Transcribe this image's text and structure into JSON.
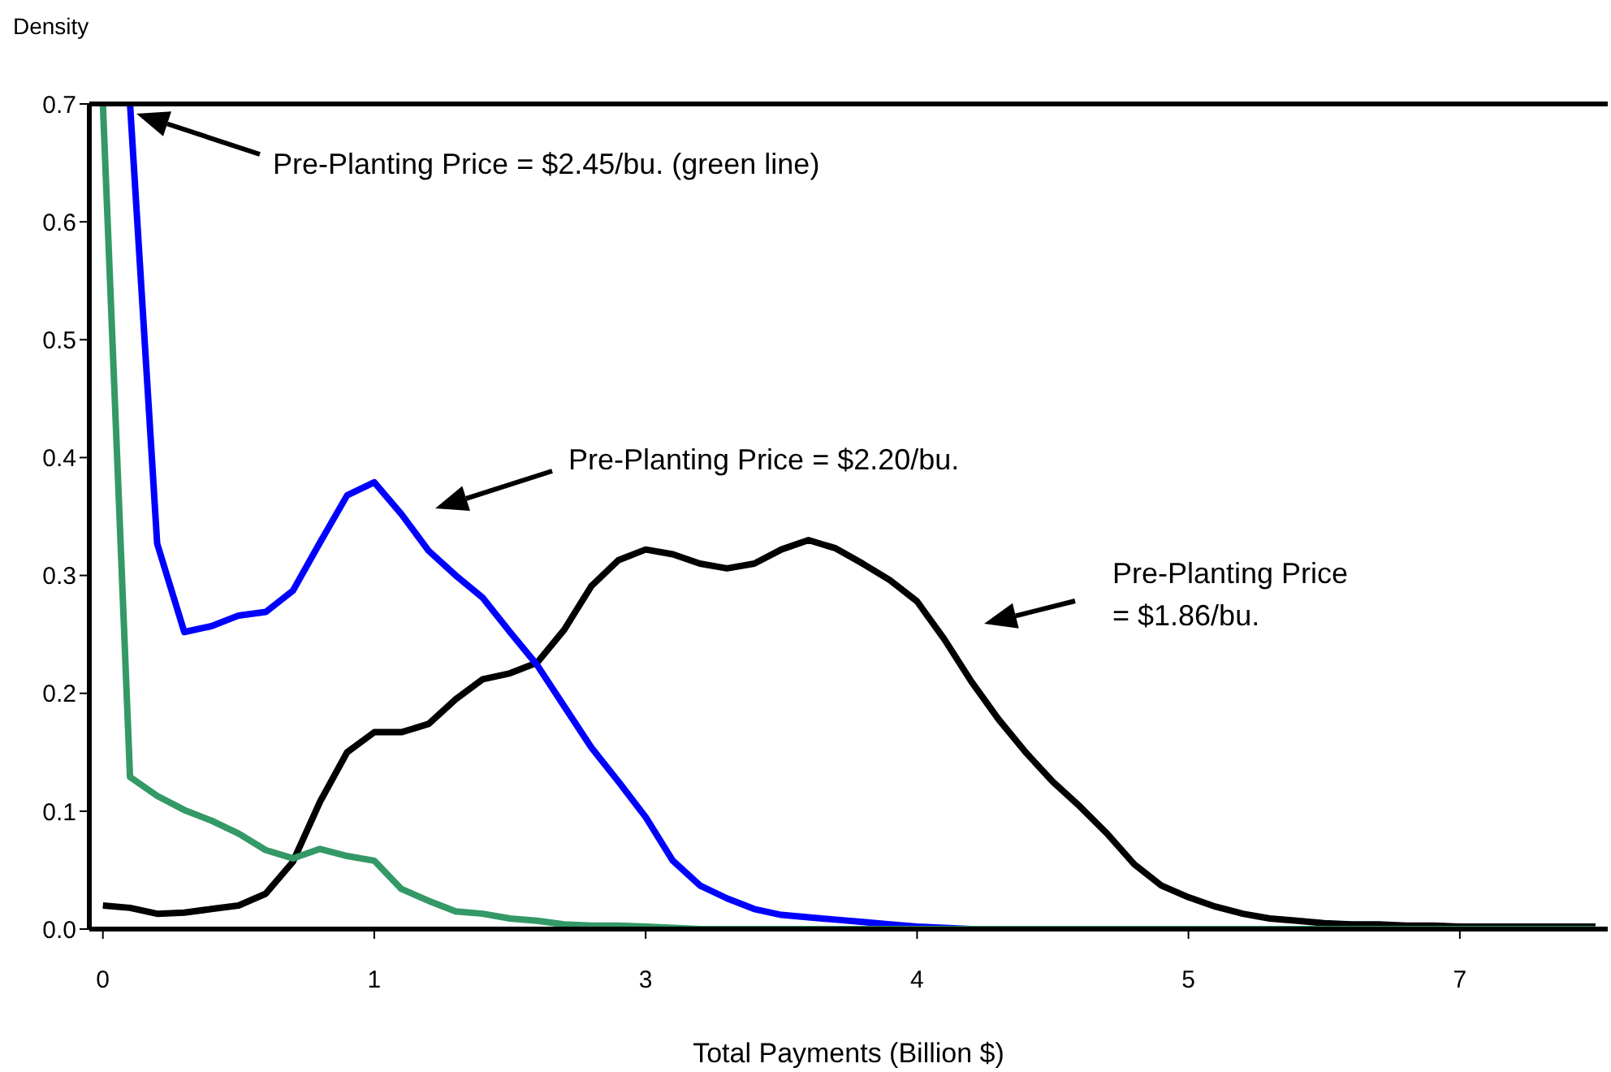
{
  "chart_data": {
    "type": "line",
    "xlabel": "Total Payments (Billion $)",
    "ylabel": "Density",
    "categories": [
      "0",
      null,
      null,
      null,
      null,
      null,
      null,
      null,
      null,
      null,
      "1",
      null,
      null,
      null,
      null,
      null,
      null,
      null,
      null,
      null,
      "3",
      null,
      null,
      null,
      null,
      null,
      null,
      null,
      null,
      null,
      "4",
      null,
      null,
      null,
      null,
      null,
      null,
      null,
      null,
      null,
      "5",
      null,
      null,
      null,
      null,
      null,
      null,
      null,
      null,
      null,
      "7",
      null,
      null,
      null,
      null,
      null
    ],
    "series": [
      {
        "color": "#000000",
        "values": [
          0.02,
          0.018,
          0.013,
          0.014,
          0.017,
          0.02,
          0.03,
          0.057,
          0.108,
          0.15,
          0.167,
          0.167,
          0.174,
          0.195,
          0.212,
          0.217,
          0.226,
          0.254,
          0.291,
          0.313,
          0.322,
          0.318,
          0.31,
          0.306,
          0.31,
          0.322,
          0.33,
          0.323,
          0.31,
          0.296,
          0.278,
          0.246,
          0.21,
          0.178,
          0.15,
          0.125,
          0.104,
          0.081,
          0.055,
          0.037,
          0.027,
          0.019,
          0.013,
          0.009,
          0.007,
          0.005,
          0.004,
          0.004,
          0.003,
          0.003,
          0.002,
          0.002,
          0.002,
          0.002,
          0.002,
          0.002
        ]
      },
      {
        "color": "#0000ff",
        "values": [
          null,
          0.7,
          0.327,
          0.252,
          0.257,
          0.266,
          0.269,
          0.287,
          0.328,
          0.368,
          0.379,
          0.352,
          0.321,
          0.3,
          0.281,
          0.252,
          0.224,
          0.189,
          0.154,
          0.125,
          0.095,
          0.058,
          0.037,
          0.026,
          0.017,
          0.012,
          0.01,
          0.008,
          0.006,
          0.004,
          0.002,
          0.001,
          0,
          0,
          null,
          null,
          null,
          null,
          null,
          null,
          null,
          null,
          null,
          null,
          null,
          null,
          null,
          null,
          null,
          null,
          null,
          null,
          null,
          null,
          null,
          null
        ]
      },
      {
        "color": "#339966",
        "values": [
          0.7,
          0.129,
          0.113,
          0.101,
          0.092,
          0.081,
          0.067,
          0.06,
          0.068,
          0.062,
          0.058,
          0.034,
          0.024,
          0.015,
          0.013,
          0.009,
          0.007,
          0.004,
          0.003,
          0.003,
          0.002,
          0.001,
          0,
          0,
          0,
          0,
          0,
          0,
          0,
          0,
          0,
          0,
          0,
          0,
          0,
          0,
          0,
          0,
          0,
          0,
          0,
          0,
          0,
          0,
          0,
          0,
          0,
          0,
          0,
          0,
          0,
          0,
          0,
          0,
          0,
          0
        ]
      }
    ],
    "ylim": [
      0,
      0.7
    ],
    "yticks": [
      {
        "value": 0,
        "label": "0.0"
      },
      0.1,
      0.2,
      0.3,
      0.4,
      0.5,
      0.6,
      0.7
    ],
    "grid": false,
    "marker": "none",
    "line_style": "solid",
    "annotations": [
      "Pre-Planting Price = $2.45/bu. (green line)",
      "Pre-Planting Price = $2.20/bu.",
      "Pre-Planting Price = $1.86/bu."
    ]
  }
}
